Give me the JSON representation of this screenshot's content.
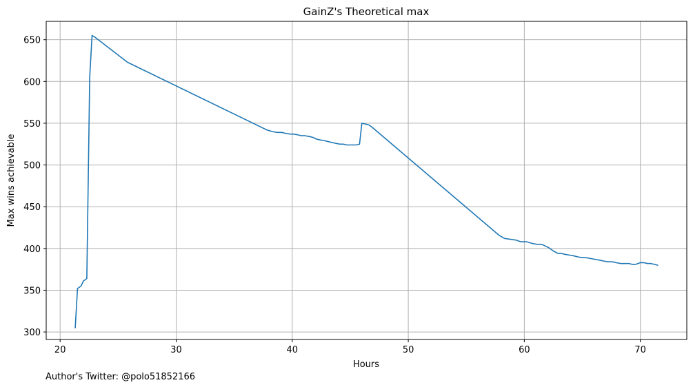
{
  "chart_data": {
    "type": "line",
    "title": "GainZ's Theoretical max",
    "xlabel": "Hours",
    "ylabel": "Max wins achievable",
    "footer": "Author's Twitter: @polo51852166",
    "xlim": [
      18.8,
      74.0
    ],
    "ylim": [
      291,
      672
    ],
    "xticks": [
      20,
      30,
      40,
      50,
      60,
      70
    ],
    "yticks": [
      300,
      350,
      400,
      450,
      500,
      550,
      600,
      650
    ],
    "grid": true,
    "line_color": "#1f77b4",
    "series": [
      {
        "x": [
          21.3,
          21.5,
          21.8,
          22.0,
          22.3,
          22.55,
          22.75,
          23.0,
          25.8,
          37.8,
          38.3,
          38.7,
          39.1,
          39.4,
          39.8,
          40.1,
          40.5,
          40.8,
          41.1,
          41.5,
          41.8,
          42.1,
          42.4,
          42.8,
          43.1,
          43.4,
          43.7,
          44.1,
          44.4,
          44.7,
          45.1,
          45.5,
          45.8,
          46.0,
          46.3,
          46.6,
          46.9,
          57.8,
          58.3,
          58.8,
          59.3,
          59.7,
          60.2,
          60.7,
          61.1,
          61.5,
          61.8,
          62.1,
          62.5,
          62.9,
          63.2,
          63.5,
          63.9,
          64.3,
          64.6,
          65.0,
          65.3,
          65.7,
          66.1,
          66.5,
          66.8,
          67.2,
          67.6,
          67.9,
          68.3,
          68.6,
          69.0,
          69.3,
          69.6,
          70.0,
          70.3,
          70.6,
          70.9,
          71.2,
          71.5
        ],
        "y": [
          305,
          352,
          355,
          361,
          364,
          605,
          655,
          653,
          623,
          542,
          540,
          539,
          539,
          538,
          537,
          537,
          536,
          535,
          535,
          534,
          533,
          531,
          530,
          529,
          528,
          527,
          526,
          525,
          525,
          524,
          524,
          524,
          525,
          550,
          549,
          548,
          545,
          416,
          412,
          411,
          410,
          408,
          408,
          406,
          405,
          405,
          403,
          401,
          397,
          394,
          394,
          393,
          392,
          391,
          390,
          389,
          389,
          388,
          387,
          386,
          385,
          384,
          384,
          383,
          382,
          382,
          382,
          381,
          381,
          383,
          383,
          382,
          382,
          381,
          380
        ]
      }
    ]
  }
}
